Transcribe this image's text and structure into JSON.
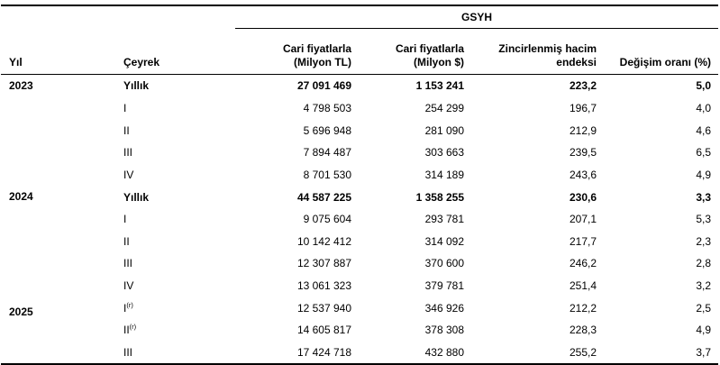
{
  "table": {
    "group_header": "GSYH",
    "year_col_label": "Yıl",
    "quarter_col_label": "Çeyrek",
    "numeric_columns": [
      {
        "name": "current-prices-tl",
        "lines": [
          "Cari fiyatlarla",
          "(Milyon TL)"
        ]
      },
      {
        "name": "current-prices-usd",
        "lines": [
          "Cari fiyatlarla",
          "(Milyon $)"
        ]
      },
      {
        "name": "chained-volume-index",
        "lines": [
          "Zincirlenmiş hacim",
          "endeksi"
        ]
      },
      {
        "name": "change-rate",
        "lines": [
          "Değişim oranı (%)"
        ]
      }
    ],
    "rows": [
      {
        "year": "2023",
        "year_rowspan": 5,
        "quarter": "Yıllık",
        "bold": true,
        "values": [
          "27 091 469",
          "1 153 241",
          "223,2",
          "5,0"
        ]
      },
      {
        "quarter": "I",
        "bold": false,
        "values": [
          "4 798 503",
          "254 299",
          "196,7",
          "4,0"
        ]
      },
      {
        "quarter": "II",
        "bold": false,
        "values": [
          "5 696 948",
          "281 090",
          "212,9",
          "4,6"
        ]
      },
      {
        "quarter": "III",
        "bold": false,
        "values": [
          "7 894 487",
          "303 663",
          "239,5",
          "6,5"
        ]
      },
      {
        "quarter": "IV",
        "bold": false,
        "values": [
          "8 701 530",
          "314 189",
          "243,6",
          "4,9"
        ]
      },
      {
        "year": "2024",
        "year_rowspan": 5,
        "quarter": "Yıllık",
        "bold": true,
        "values": [
          "44 587 225",
          "1 358 255",
          "230,6",
          "3,3"
        ]
      },
      {
        "quarter": "I",
        "bold": false,
        "values": [
          "9 075 604",
          "293 781",
          "207,1",
          "5,3"
        ]
      },
      {
        "quarter": "II",
        "bold": false,
        "values": [
          "10 142 412",
          "314 092",
          "217,7",
          "2,3"
        ]
      },
      {
        "quarter": "III",
        "bold": false,
        "values": [
          "12 307 887",
          "370 600",
          "246,2",
          "2,8"
        ]
      },
      {
        "quarter": "IV",
        "bold": false,
        "values": [
          "13 061 323",
          "379 781",
          "251,4",
          "3,2"
        ]
      },
      {
        "year": "2025",
        "year_rowspan": 3,
        "year_offset": true,
        "quarter": "I",
        "quarter_sup": "(r)",
        "bold": false,
        "values": [
          "12 537 940",
          "346 926",
          "212,2",
          "2,5"
        ]
      },
      {
        "quarter": "II",
        "quarter_sup": "(r)",
        "bold": false,
        "values": [
          "14 605 817",
          "378 308",
          "228,3",
          "4,9"
        ]
      },
      {
        "quarter": "III",
        "bold": false,
        "values": [
          "17 424 718",
          "432 880",
          "255,2",
          "3,7"
        ]
      }
    ]
  }
}
